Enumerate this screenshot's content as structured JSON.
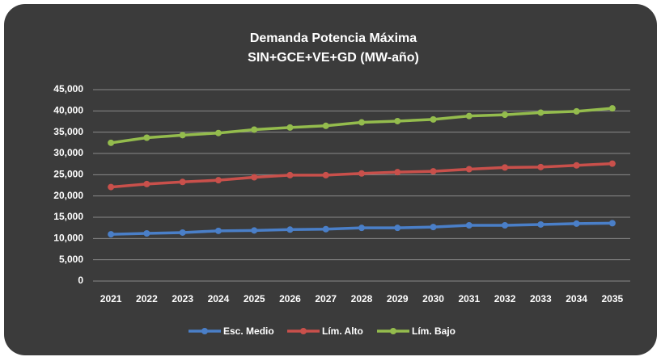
{
  "chart_data": {
    "type": "line",
    "title": "Demanda Potencia Máxima",
    "subtitle": "SIN+GCE+VE+GD (MW-año)",
    "categories": [
      "2021",
      "2022",
      "2023",
      "2024",
      "2025",
      "2026",
      "2027",
      "2028",
      "2029",
      "2030",
      "2031",
      "2032",
      "2033",
      "2034",
      "2035"
    ],
    "series": [
      {
        "name": "Esc. Medio",
        "color": "#4a7fc8",
        "values": [
          11000,
          11200,
          11400,
          11800,
          11900,
          12100,
          12200,
          12500,
          12500,
          12700,
          13100,
          13100,
          13300,
          13500,
          13600
        ]
      },
      {
        "name": "Lím. Alto",
        "color": "#c9504b",
        "values": [
          22100,
          22800,
          23300,
          23700,
          24400,
          24900,
          24900,
          25300,
          25600,
          25800,
          26300,
          26700,
          26800,
          27200,
          27600
        ]
      },
      {
        "name": "Lím. Bajo",
        "color": "#94bc4d",
        "values": [
          32500,
          33700,
          34300,
          34800,
          35600,
          36100,
          36500,
          37300,
          37600,
          38000,
          38800,
          39100,
          39600,
          39900,
          40600
        ]
      }
    ],
    "ylim": [
      0,
      45000
    ],
    "yticks": [
      0,
      {
        "value": 5000,
        "label": "5,000"
      },
      {
        "value": 10000,
        "label": "10,000"
      },
      {
        "value": 15000,
        "label": "15,000"
      },
      {
        "value": 20000,
        "label": "20,000"
      },
      {
        "value": 25000,
        "label": "25,000"
      },
      {
        "value": 30000,
        "label": "30,000"
      },
      {
        "value": 35000,
        "label": "35,000"
      },
      {
        "value": 40000,
        "label": "40,000"
      },
      {
        "value": 45000,
        "label": "45,000"
      }
    ],
    "grid": true,
    "legend": "bottom"
  }
}
